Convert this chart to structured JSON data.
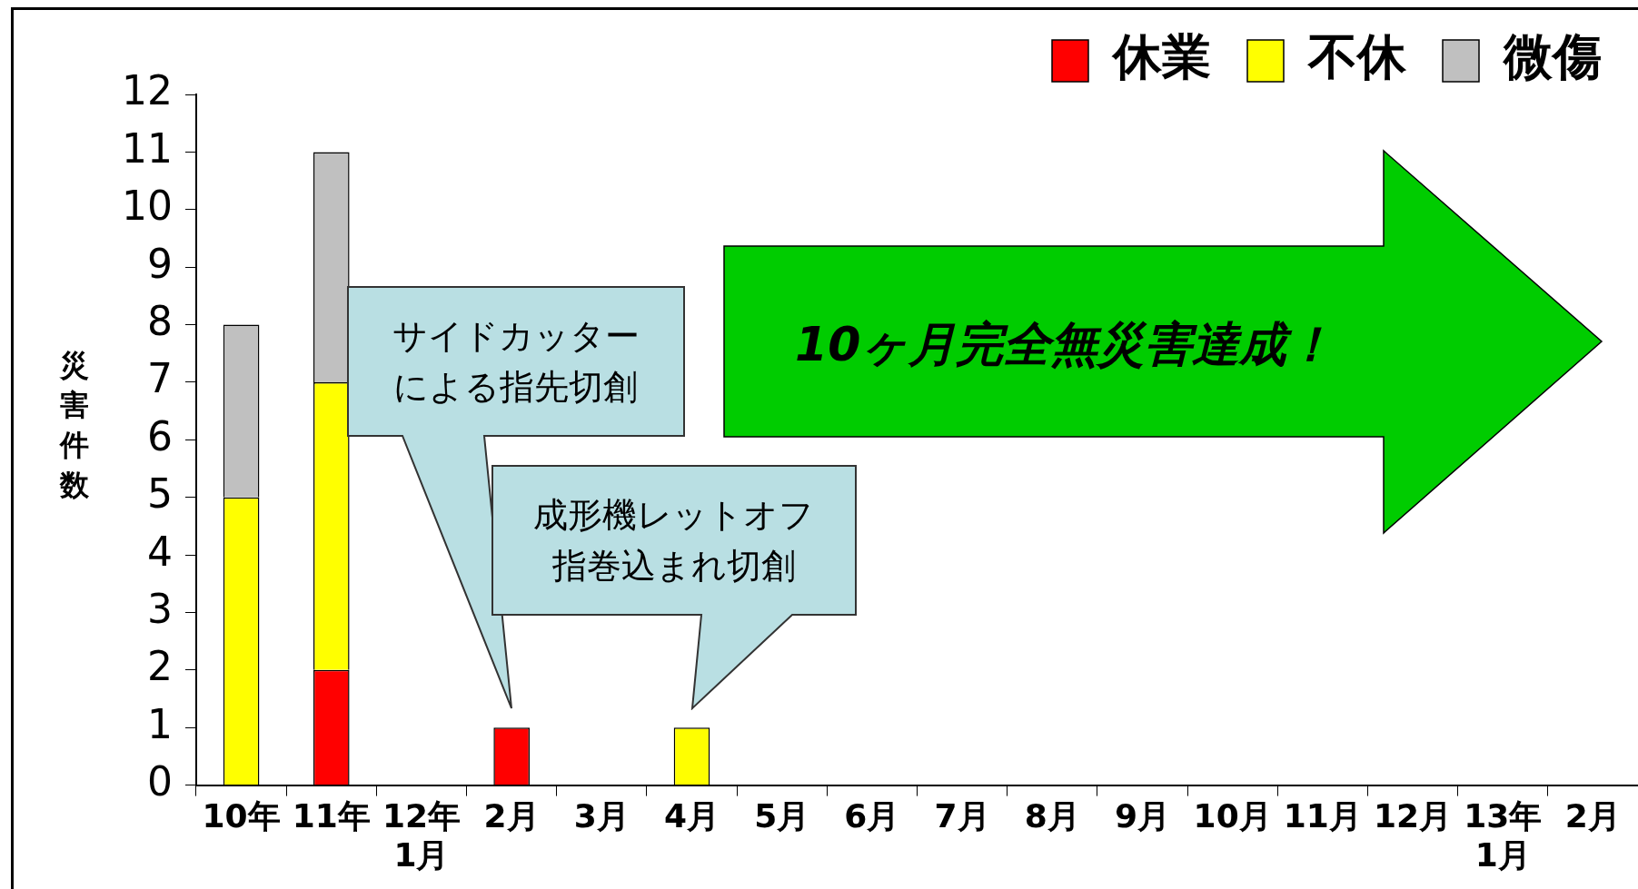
{
  "chart_data": {
    "type": "bar",
    "stacked": true,
    "ylabel": "災害件数",
    "categories": [
      "10年",
      "11年",
      "12年\n1月",
      "2月",
      "3月",
      "4月",
      "5月",
      "6月",
      "7月",
      "8月",
      "9月",
      "10月",
      "11月",
      "12月",
      "13年\n1月",
      "2月"
    ],
    "series": [
      {
        "name": "休業",
        "color": "#ff0000",
        "values": [
          0,
          2,
          null,
          1,
          null,
          null,
          null,
          null,
          null,
          null,
          null,
          null,
          null,
          null,
          null,
          null
        ]
      },
      {
        "name": "不休",
        "color": "#ffff00",
        "values": [
          5,
          5,
          null,
          null,
          null,
          1,
          null,
          null,
          null,
          null,
          null,
          null,
          null,
          null,
          null,
          null
        ]
      },
      {
        "name": "微傷",
        "color": "#c0c0c0",
        "values": [
          3,
          4,
          null,
          null,
          null,
          null,
          null,
          null,
          null,
          null,
          null,
          null,
          null,
          null,
          null,
          null
        ]
      }
    ],
    "ylim": [
      0,
      12
    ],
    "yticks": [
      0,
      1,
      2,
      3,
      4,
      5,
      6,
      7,
      8,
      9,
      10,
      11,
      12
    ],
    "grid": false,
    "legend": "top right",
    "annotations": [
      "サイドカッターによる指先切創",
      "成形機レットオフ指巻込まれ切創",
      "10ヶ月完全無災害達成！"
    ]
  }
}
